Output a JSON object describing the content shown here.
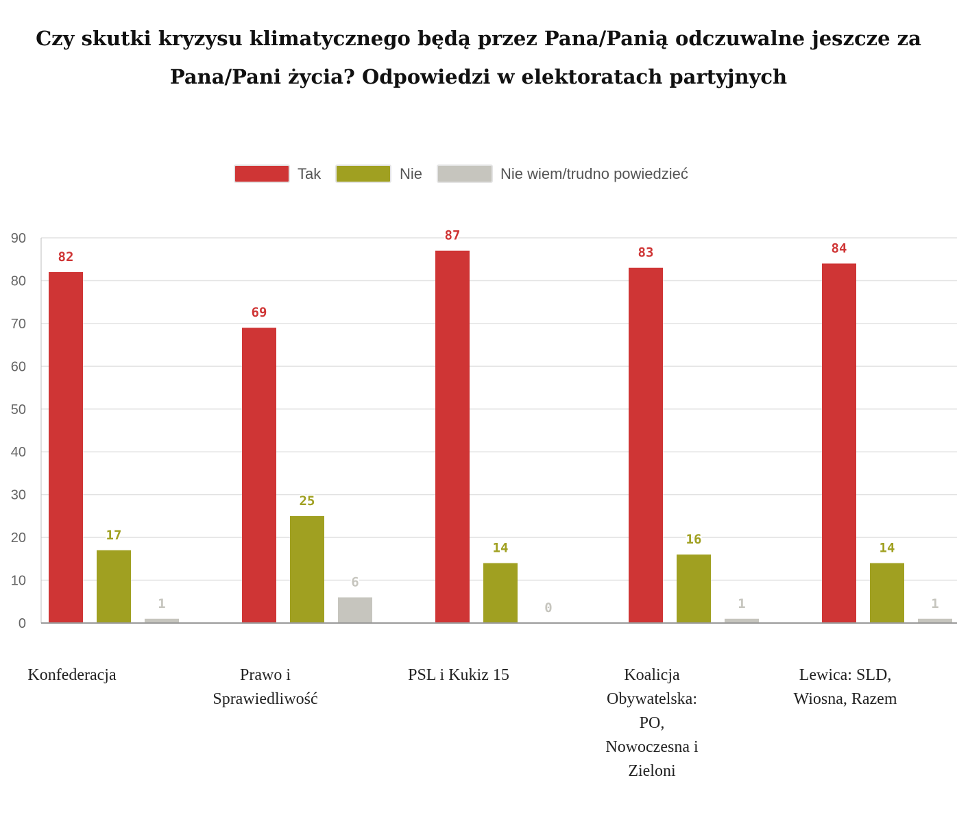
{
  "title_lines": [
    "Czy skutki kryzysu klimatycznego będą przez Pana/Panią odczuwalne jeszcze za",
    "Pana/Pani życia? Odpowiedzi w elektoratach partyjnych"
  ],
  "chart_data": {
    "type": "bar",
    "categories": [
      [
        "Konfederacja"
      ],
      [
        "Prawo i",
        "Sprawiedliwość"
      ],
      [
        "PSL i Kukiz 15"
      ],
      [
        "Koalicja",
        "Obywatelska:",
        "PO,",
        "Nowoczesna i",
        "Zieloni"
      ],
      [
        "Lewica: SLD,",
        "Wiosna, Razem"
      ]
    ],
    "series": [
      {
        "name": "Tak",
        "color": "#cf3535",
        "values": [
          82,
          69,
          87,
          83,
          84
        ]
      },
      {
        "name": "Nie",
        "color": "#a0a021",
        "values": [
          17,
          25,
          14,
          16,
          14
        ]
      },
      {
        "name": "Nie wiem/trudno powiedzieć",
        "color": "#c6c5be",
        "values": [
          1,
          6,
          0,
          1,
          1
        ]
      }
    ],
    "ylim": [
      0,
      90
    ],
    "yticks": [
      0,
      10,
      20,
      30,
      40,
      50,
      60,
      70,
      80,
      90
    ],
    "grid": true,
    "legend_position": "top-center"
  }
}
